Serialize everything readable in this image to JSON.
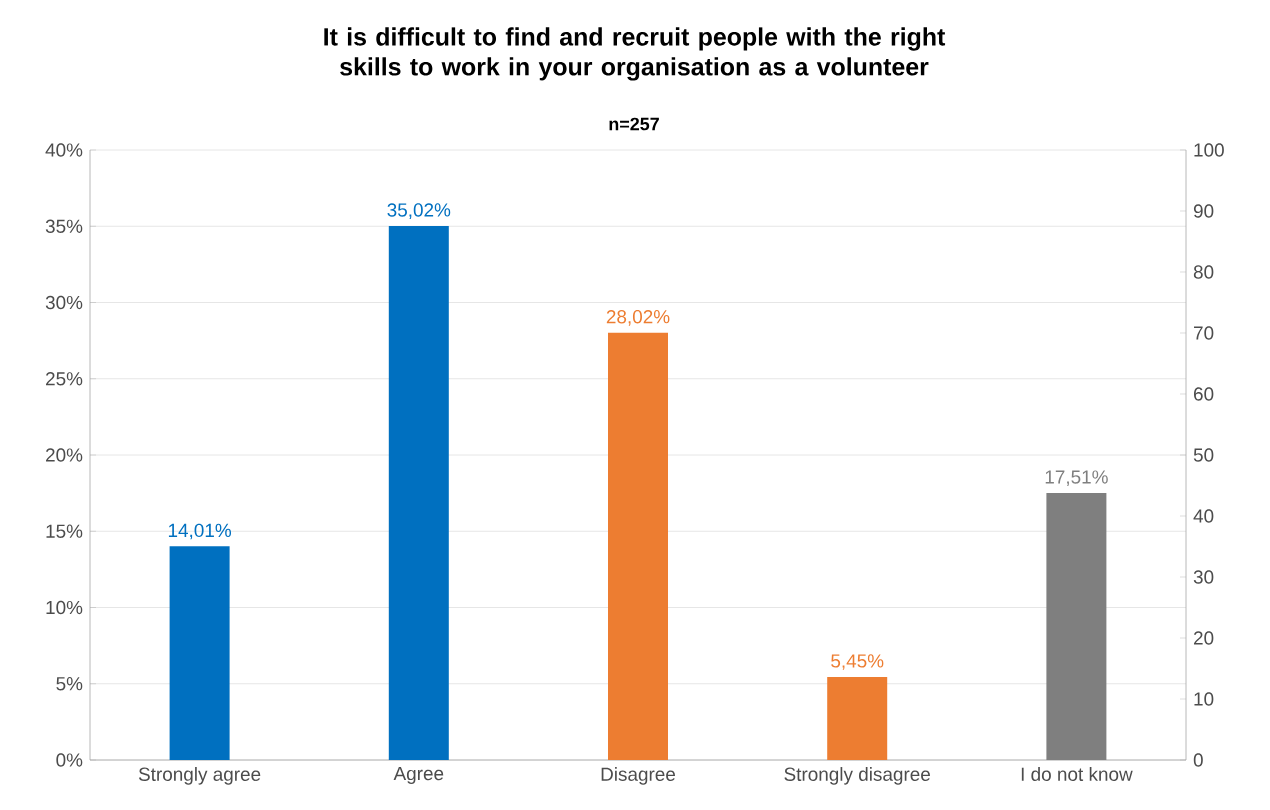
{
  "chart_data": {
    "type": "bar",
    "title": "It is difficult to find and recruit people with the right skills to work in your organisation as a volunteer",
    "subtitle": "n=257",
    "categories": [
      "Strongly agree",
      "Agree",
      "Disagree",
      "Strongly disagree",
      "I do not know"
    ],
    "values": [
      14.01,
      35.02,
      28.02,
      5.45,
      17.51
    ],
    "colors": [
      "#0070c0",
      "#0070c0",
      "#ed7d31",
      "#ed7d31",
      "#7f7f7f"
    ],
    "value_labels": [
      "14,01%",
      "35,02%",
      "28,02%",
      "5,45%",
      "17,51%"
    ],
    "ylim": [
      0,
      40
    ],
    "yticks": [
      {
        "value": 0,
        "label": "0%"
      },
      {
        "value": 5,
        "label": "5%"
      },
      {
        "value": 10,
        "label": "10%"
      },
      {
        "value": 15,
        "label": "15%"
      },
      {
        "value": 20,
        "label": "20%"
      },
      {
        "value": 25,
        "label": "25%"
      },
      {
        "value": 30,
        "label": "30%"
      },
      {
        "value": 35,
        "label": "35%"
      },
      {
        "value": 40,
        "label": "40%"
      }
    ],
    "y2lim": [
      0,
      100
    ],
    "y2ticks": [
      0,
      10,
      20,
      30,
      40,
      50,
      60,
      70,
      80,
      90,
      100
    ],
    "grid": "y"
  }
}
